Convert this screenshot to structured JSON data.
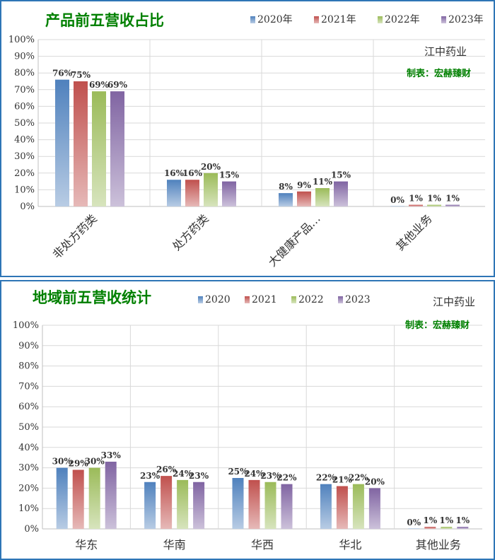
{
  "chart_data": [
    {
      "type": "bar",
      "title": "产品前五营收占比",
      "company": "江中药业",
      "maker": "制表：宏赫臻财",
      "categories": [
        "非处方药类",
        "处方药类",
        "大健康产品…",
        "其他业务"
      ],
      "y_ticks": [
        "0%",
        "10%",
        "20%",
        "30%",
        "40%",
        "50%",
        "60%",
        "70%",
        "80%",
        "90%",
        "100%"
      ],
      "ylim": [
        0,
        100
      ],
      "legend_position": "top-right",
      "series": [
        {
          "name": "2020年",
          "values": [
            76,
            16,
            8,
            0
          ],
          "labels": [
            "76%",
            "16%",
            "8%",
            "0%"
          ]
        },
        {
          "name": "2021年",
          "values": [
            75,
            16,
            9,
            1
          ],
          "labels": [
            "75%",
            "16%",
            "9%",
            "1%"
          ]
        },
        {
          "name": "2022年",
          "values": [
            69,
            20,
            11,
            1
          ],
          "labels": [
            "69%",
            "20%",
            "11%",
            "1%"
          ]
        },
        {
          "name": "2023年",
          "values": [
            69,
            15,
            15,
            1
          ],
          "labels": [
            "69%",
            "15%",
            "15%",
            "1%"
          ]
        }
      ]
    },
    {
      "type": "bar",
      "title": "地域前五营收统计",
      "company": "江中药业",
      "maker": "制表：宏赫臻财",
      "categories": [
        "华东",
        "华南",
        "华西",
        "华北",
        "其他业务"
      ],
      "y_ticks": [
        "0%",
        "10%",
        "20%",
        "30%",
        "40%",
        "50%",
        "60%",
        "70%",
        "80%",
        "90%",
        "100%"
      ],
      "ylim": [
        0,
        100
      ],
      "legend_position": "top-center",
      "series": [
        {
          "name": "2020",
          "values": [
            30,
            23,
            25,
            22,
            0
          ],
          "labels": [
            "30%",
            "23%",
            "25%",
            "22%",
            "0%"
          ]
        },
        {
          "name": "2021",
          "values": [
            29,
            26,
            24,
            21,
            1
          ],
          "labels": [
            "29%",
            "26%",
            "24%",
            "21%",
            "1%"
          ]
        },
        {
          "name": "2022",
          "values": [
            30,
            24,
            23,
            22,
            1
          ],
          "labels": [
            "30%",
            "24%",
            "23%",
            "22%",
            "1%"
          ]
        },
        {
          "name": "2023",
          "values": [
            33,
            23,
            22,
            20,
            1
          ],
          "labels": [
            "33%",
            "23%",
            "22%",
            "20%",
            "1%"
          ]
        }
      ]
    }
  ],
  "colors": {
    "series": [
      "#4f81bd",
      "#c0504d",
      "#9bbb59",
      "#8064a2"
    ],
    "series_light": [
      "#b8cce4",
      "#e6b9b8",
      "#d7e4bd",
      "#ccc1da"
    ],
    "title": "#008000",
    "frame": "#2e75b6"
  }
}
